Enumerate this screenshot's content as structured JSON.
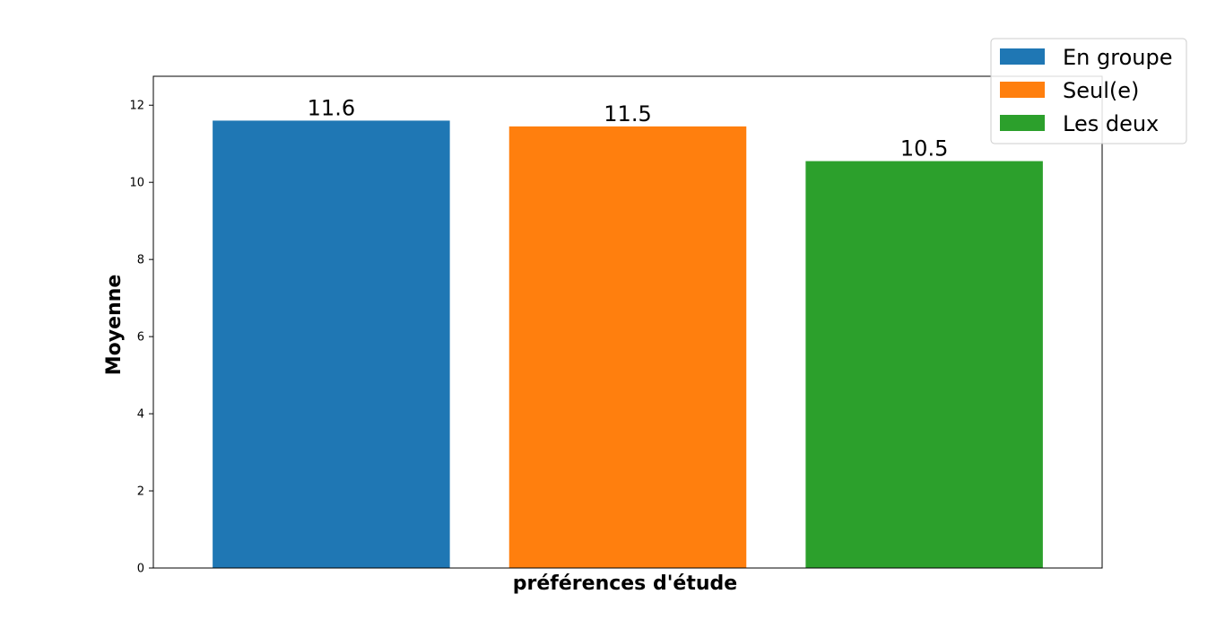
{
  "chart_data": {
    "type": "bar",
    "categories": [
      "En groupe",
      "Seul(e)",
      "Les deux"
    ],
    "values": [
      11.6,
      11.45,
      10.55
    ],
    "data_labels": [
      "11.6",
      "11.5",
      "10.5"
    ],
    "colors": [
      "#1f77b4",
      "#ff7f0e",
      "#2ca02c"
    ],
    "xlabel": "préférences d'étude",
    "ylabel": "Moyenne",
    "ylim": [
      0,
      12.75
    ],
    "yticks": [
      0,
      2,
      4,
      6,
      8,
      10,
      12
    ],
    "grid": false,
    "legend": {
      "placement": "top-right",
      "entries": [
        "En groupe",
        "Seul(e)",
        "Les deux"
      ]
    }
  }
}
